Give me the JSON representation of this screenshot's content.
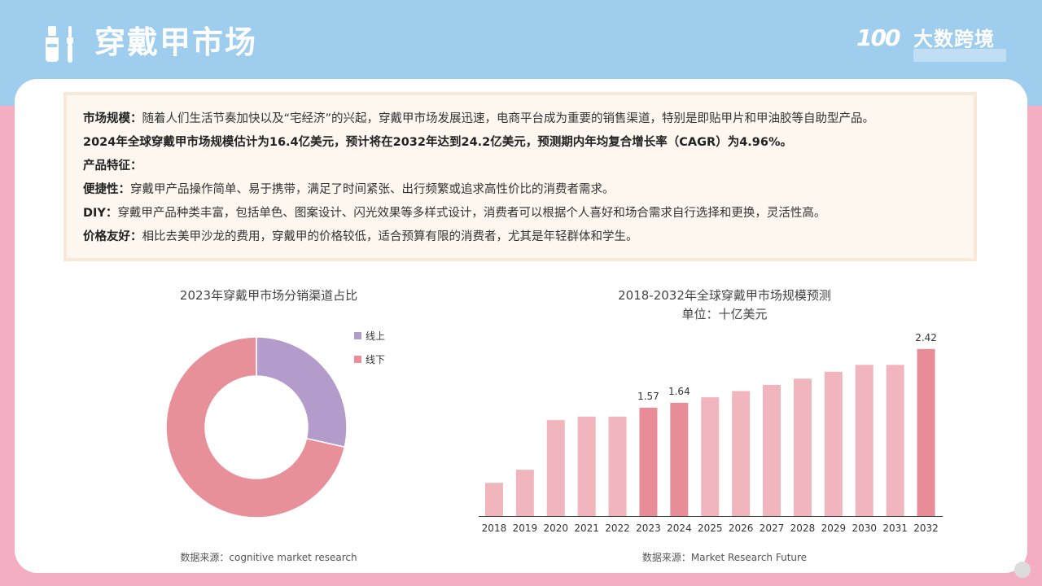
{
  "header": {
    "title": "穿戴甲市场",
    "brand_number": "100",
    "brand_name": "大数跨境"
  },
  "summary": {
    "line1_label": "市场规模：",
    "line1_text": "随着人们生活节奏加快以及“宅经济”的兴起，穿戴甲市场发展迅速，电商平台成为重要的销售渠道，特别是即贴甲片和甲油胶等自助型产品。",
    "line2_text": "2024年全球穿戴甲市场规模估计为16.4亿美元，预计将在2032年达到24.2亿美元，预测期内年均复合增长率（CAGR）为4.96%。",
    "line3_label": "产品特征：",
    "line4_label": "便捷性：",
    "line4_text": "穿戴甲产品操作简单、易于携带，满足了时间紧张、出行频繁或追求高性价比的消费者需求。",
    "line5_label": "DIY：",
    "line5_text": "穿戴甲产品种类丰富，包括单色、图案设计、闪光效果等多样式设计，消费者可以根据个人喜好和场合需求自行选择和更换，灵活性高。",
    "line6_label": "价格友好：",
    "line6_text": "相比去美甲沙龙的费用，穿戴甲的价格较低，适合预算有限的消费者，尤其是年轻群体和学生。"
  },
  "chart_data": [
    {
      "type": "pie",
      "title": "2023年穿戴甲市场分销渠道占比",
      "source": "数据来源：cognitive market research",
      "labels": [
        "线上",
        "线下"
      ],
      "values": [
        28.5,
        71.5
      ],
      "colors": [
        "#b39ccb",
        "#e8909a"
      ],
      "donut": true,
      "legend": "right-top"
    },
    {
      "type": "bar",
      "title": "2018-2032年全球穿戴甲市场规模预测",
      "subtitle": "单位：十亿美元",
      "source": "数据来源：Market Research Future",
      "categories": [
        "2018",
        "2019",
        "2020",
        "2021",
        "2022",
        "2023",
        "2024",
        "2025",
        "2026",
        "2027",
        "2028",
        "2029",
        "2030",
        "2031",
        "2032"
      ],
      "values": [
        0.48,
        0.67,
        1.39,
        1.44,
        1.44,
        1.57,
        1.64,
        1.72,
        1.81,
        1.9,
        1.99,
        2.09,
        2.19,
        2.19,
        2.42
      ],
      "data_labels": {
        "5": "1.57",
        "6": "1.64",
        "14": "2.42"
      },
      "highlight": [
        5,
        6,
        14
      ],
      "ylim": [
        0,
        2.5
      ],
      "grid": false,
      "colors": {
        "bar": "#f0b5bd",
        "highlight": "#e88c98"
      }
    }
  ]
}
